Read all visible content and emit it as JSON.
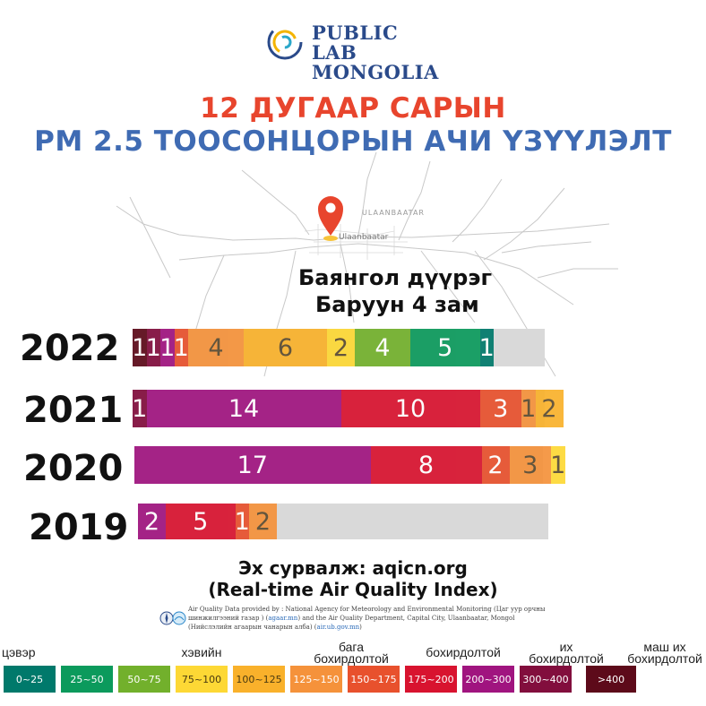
{
  "logo": {
    "line1": "PUBLIC LAB",
    "line2": "MONGOLIA"
  },
  "title": {
    "line1": "12 ДУГААР САРЫН",
    "line2": "PM 2.5 ТООСОНЦОРЫН АЧИ ҮЗҮҮЛЭЛТ"
  },
  "map": {
    "label_city_caps": "ULAANBAATAR",
    "label_city": "Ulaanbaatar"
  },
  "location": {
    "line1": "Баянгол дүүрэг",
    "line2": "Баруун 4 зам"
  },
  "colors": {
    "c0": "#00796b",
    "c1": "#0b9a5c",
    "c2": "#72b02c",
    "c3": "#fdd835",
    "c4": "#f9b12b",
    "c5": "#f5923b",
    "c6": "#e8512d",
    "c7": "#d8132f",
    "c8": "#a0147f",
    "c9": "#820e3d",
    "c10": "#5d0a1a",
    "empty": "#d9d9d9"
  },
  "chart_data": {
    "type": "bar",
    "orientation": "horizontal-stacked",
    "unit_description": "number of days in each PM2.5 category",
    "categories": [
      "0~25",
      "25~50",
      "50~75",
      "75~100",
      "100~125",
      "125~150",
      "150~175",
      "175~200",
      "200~300",
      "300~400",
      ">400"
    ],
    "series": [
      {
        "year": "2022",
        "segments": [
          {
            "category": ">400",
            "value": 1
          },
          {
            "category": "300~400",
            "value": 1
          },
          {
            "category": "200~300",
            "value": 1
          },
          {
            "category": "150~175",
            "value": 1
          },
          {
            "category": "125~150",
            "value": 4
          },
          {
            "category": "100~125",
            "value": 6
          },
          {
            "category": "75~100",
            "value": 2
          },
          {
            "category": "50~75",
            "value": 4
          },
          {
            "category": "25~50",
            "value": 5
          },
          {
            "category": "0~25",
            "value": 1
          }
        ]
      },
      {
        "year": "2021",
        "segments": [
          {
            "category": "300~400",
            "value": 1
          },
          {
            "category": "200~300",
            "value": 14
          },
          {
            "category": "175~200",
            "value": 10
          },
          {
            "category": "150~175",
            "value": 3
          },
          {
            "category": "125~150",
            "value": 1
          },
          {
            "category": "100~125",
            "value": 2
          }
        ]
      },
      {
        "year": "2020",
        "segments": [
          {
            "category": "200~300",
            "value": 17
          },
          {
            "category": "175~200",
            "value": 8
          },
          {
            "category": "150~175",
            "value": 2
          },
          {
            "category": "125~150",
            "value": 3
          },
          {
            "category": "75~100",
            "value": 1
          }
        ]
      },
      {
        "year": "2019",
        "segments": [
          {
            "category": "200~300",
            "value": 2
          },
          {
            "category": "175~200",
            "value": 5
          },
          {
            "category": "150~175",
            "value": 1
          },
          {
            "category": "125~150",
            "value": 2
          }
        ]
      }
    ]
  },
  "source": {
    "line1": "Эх сурвалж: aqicn.org",
    "line2": "(Real-time Air Quality Index)"
  },
  "attribution": {
    "text1": "Air Quality Data provided by : National Agency for Meteorology and Environmental Monitoring (Цаг уур орчны",
    "text2a": "шинжилгээний газар ) (",
    "link1": "agaar.mn",
    "text2b": ") and the Air Quality Department, Capital City, Ulaanbaatar, Mongol",
    "text3a": "(Нийслэлийн агаарын чанарын алба) (",
    "link2": "air.ub.gov.mn",
    "text3b": ")"
  },
  "legend": {
    "clean": "цэвэр",
    "normal": "хэвийн",
    "low_polluted": "бага бохирдолтой",
    "polluted": "бохирдолтой",
    "high_polluted": "их бохирдолтой",
    "very_high_polluted": "маш их бохирдолтой",
    "ranges": [
      "0~25",
      "25~50",
      "50~75",
      "75~100",
      "100~125",
      "125~150",
      "150~175",
      "175~200",
      "200~300",
      "300~400",
      ">400"
    ]
  }
}
